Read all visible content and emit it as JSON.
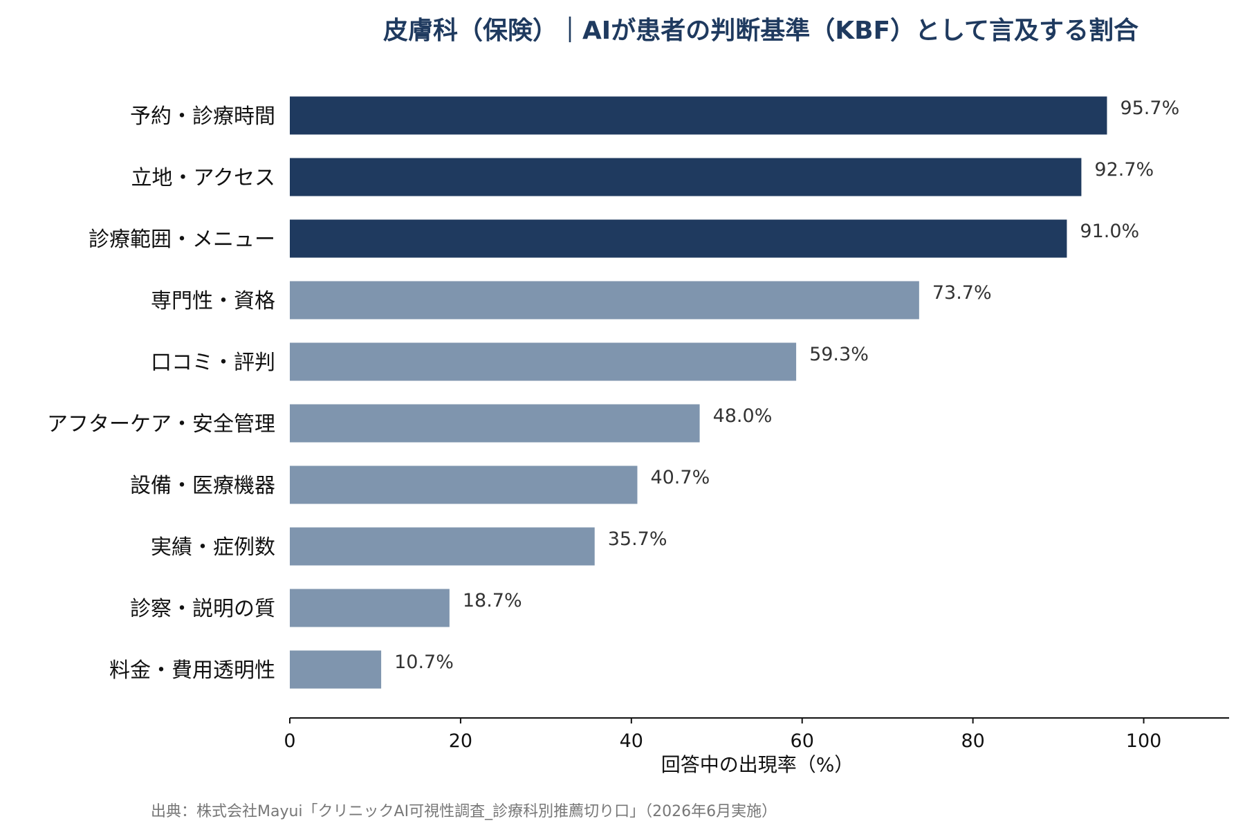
{
  "chart_data": {
    "type": "bar",
    "orientation": "horizontal",
    "title": "皮膚科（保険）｜AIが患者の判断基準（KBF）として言及する割合",
    "categories": [
      "予約・診療時間",
      "立地・アクセス",
      "診療範囲・メニュー",
      "専門性・資格",
      "口コミ・評判",
      "アフターケア・安全管理",
      "設備・医療機器",
      "実績・症例数",
      "診察・説明の質",
      "料金・費用透明性"
    ],
    "values": [
      95.7,
      92.7,
      91.0,
      73.7,
      59.3,
      48.0,
      40.7,
      35.7,
      18.7,
      10.7
    ],
    "value_labels": [
      "95.7%",
      "92.7%",
      "91.0%",
      "73.7%",
      "59.3%",
      "48.0%",
      "40.7%",
      "35.7%",
      "18.7%",
      "10.7%"
    ],
    "highlight_top_n": 3,
    "xlabel": "回答中の出現率（%）",
    "ylabel": "",
    "xlim": [
      0,
      110
    ],
    "xticks": [
      0,
      20,
      40,
      60,
      80,
      100
    ],
    "grid": false,
    "colors": {
      "highlight": "#1f3a5f",
      "normal": "#7f95ae",
      "title": "#1f3a5f"
    }
  },
  "source": "出典：株式会社Mayui「クリニックAI可視性調査_診療科別推薦切り口」（2026年6月実施）"
}
